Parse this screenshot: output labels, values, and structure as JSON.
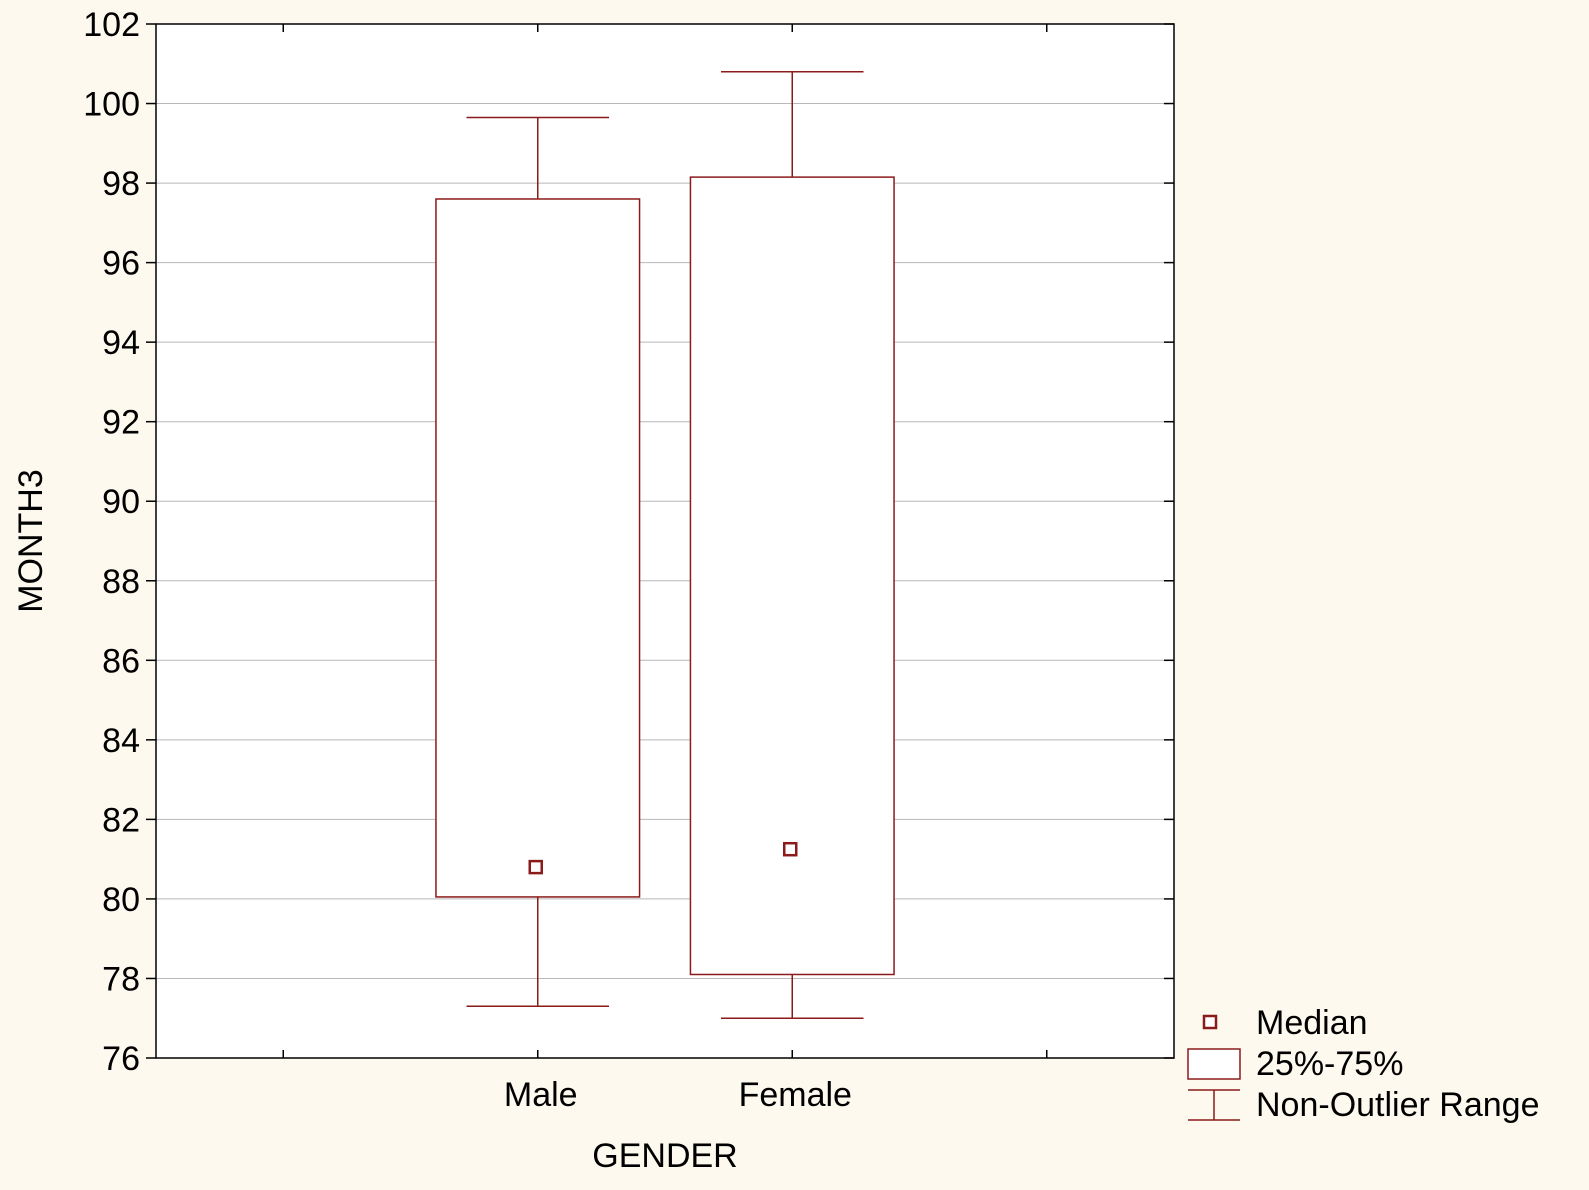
{
  "chart_data": {
    "type": "boxplot",
    "title": "",
    "xlabel": "GENDER",
    "ylabel": "MONTH3",
    "ylim": [
      76,
      102
    ],
    "ytick_step": 2,
    "yticks": [
      "76",
      "78",
      "80",
      "82",
      "84",
      "86",
      "88",
      "90",
      "92",
      "94",
      "96",
      "98",
      "100",
      "102"
    ],
    "grid": true,
    "categories": [
      "Male",
      "Female"
    ],
    "series": [
      {
        "category": "Male",
        "median": 80.8,
        "q1": 80.05,
        "q3": 97.6,
        "whisker_low": 77.3,
        "whisker_high": 99.65
      },
      {
        "category": "Female",
        "median": 81.25,
        "q1": 78.1,
        "q3": 98.15,
        "whisker_low": 77.0,
        "whisker_high": 100.8
      }
    ],
    "legend": {
      "placement": "bottom-right",
      "entries": [
        {
          "label": "Median",
          "symbol": "square"
        },
        {
          "label": "25%-75%",
          "symbol": "box"
        },
        {
          "label": "Non-Outlier Range",
          "symbol": "whisker"
        }
      ]
    },
    "colors": {
      "background": "#fdf9ee",
      "plot_area": "#ffffff",
      "box": "#8b1a1a",
      "grid": "#b8b8b8",
      "axis": "#000000",
      "text": "#000000"
    }
  }
}
